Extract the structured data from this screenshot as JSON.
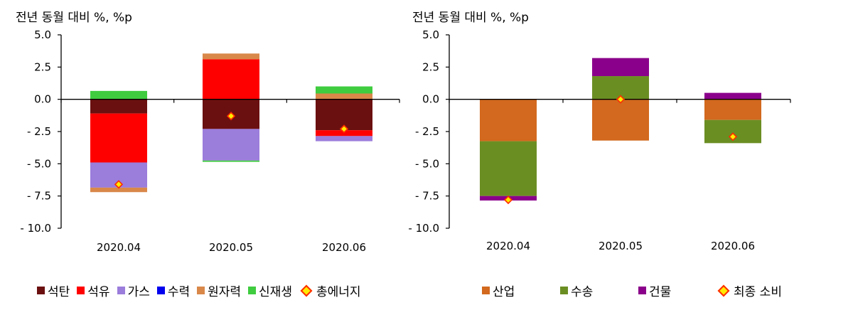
{
  "chart_data": [
    {
      "type": "bar",
      "stacked": true,
      "unit_label": "전년 동월 대비 %, %p",
      "categories": [
        "2020.04",
        "2020.05",
        "2020.06"
      ],
      "ylim": [
        -10.0,
        5.0
      ],
      "yticks": [
        "5.0",
        "2.5",
        "0.0",
        "- 2.5",
        "- 5.0",
        "- 7.5",
        "- 10.0"
      ],
      "ytick_values": [
        5.0,
        2.5,
        0.0,
        -2.5,
        -5.0,
        -7.5,
        -10.0
      ],
      "series": [
        {
          "name": "석탄",
          "color": "#6b1010",
          "values": [
            -1.1,
            -2.3,
            -2.4
          ]
        },
        {
          "name": "석유",
          "color": "#ff0000",
          "values": [
            -3.8,
            3.1,
            -0.45
          ]
        },
        {
          "name": "가스",
          "color": "#9b7ddb",
          "values": [
            -1.95,
            -2.45,
            -0.4
          ]
        },
        {
          "name": "수력",
          "color": "#0000ee",
          "values": [
            0.0,
            0.0,
            0.0
          ]
        },
        {
          "name": "원자력",
          "color": "#d9884a",
          "values": [
            -0.35,
            0.45,
            0.45
          ]
        },
        {
          "name": "신재생",
          "color": "#3fcc3f",
          "values": [
            0.65,
            -0.1,
            0.55
          ]
        }
      ],
      "total_series": {
        "name": "총에너지",
        "values": [
          -6.6,
          -1.3,
          -2.3
        ]
      },
      "grid": false,
      "legend_position": "bottom"
    },
    {
      "type": "bar",
      "stacked": true,
      "unit_label": "전년 동월 대비 %, %p",
      "categories": [
        "2020.04",
        "2020.05",
        "2020.06"
      ],
      "ylim": [
        -10.0,
        5.0
      ],
      "yticks": [
        "5.0",
        "2.5",
        "0.0",
        "- 2.5",
        "- 5.0",
        "- 7.5",
        "- 10.0"
      ],
      "ytick_values": [
        5.0,
        2.5,
        0.0,
        -2.5,
        -5.0,
        -7.5,
        -10.0
      ],
      "series": [
        {
          "name": "산업",
          "color": "#d2691e",
          "values": [
            -3.25,
            -3.2,
            -1.6
          ]
        },
        {
          "name": "수송",
          "color": "#6b8e23",
          "values": [
            -4.25,
            1.8,
            -1.8
          ]
        },
        {
          "name": "건물",
          "color": "#8b008b",
          "values": [
            -0.35,
            1.4,
            0.5
          ]
        }
      ],
      "total_series": {
        "name": "최종 소비",
        "values": [
          -7.8,
          0.0,
          -2.9
        ]
      },
      "grid": false,
      "legend_position": "bottom"
    }
  ]
}
